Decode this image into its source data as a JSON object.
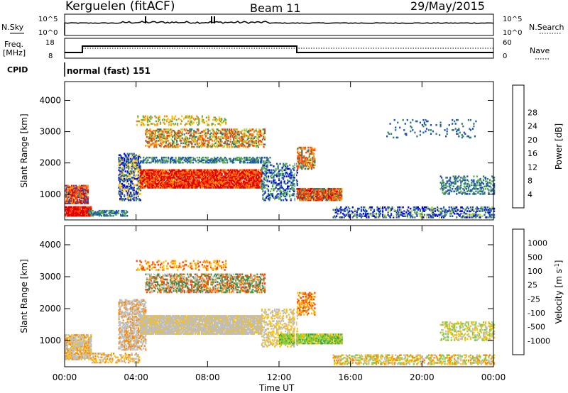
{
  "header": {
    "station": "Kerguelen (fitACF)",
    "beam": "Beam 11",
    "date": "29/May/2015"
  },
  "panels": {
    "nsky": {
      "left_label": "N.Sky",
      "left_ticks": [
        "10^5",
        "10^0"
      ],
      "right_label": "N.Search",
      "right_ticks": [
        "10^5",
        "10^0"
      ]
    },
    "freq": {
      "left_label_1": "Freq.",
      "left_label_2": "[MHz]",
      "left_ticks": [
        "18",
        "8"
      ],
      "right_label": "Nave",
      "right_ticks": [
        "60",
        "0"
      ]
    },
    "cpid": {
      "label": "CPID",
      "text": "normal (fast) 151"
    }
  },
  "chart_data": [
    {
      "type": "heatmap",
      "name": "power",
      "ylabel": "Slant Range [km]",
      "xlabel": "",
      "xticks": [
        "00:00",
        "04:00",
        "08:00",
        "12:00",
        "16:00",
        "20:00",
        "00:00"
      ],
      "yticks": [
        1000,
        2000,
        3000,
        4000
      ],
      "ylim": [
        180,
        4600
      ],
      "xlim_hours": [
        0,
        24
      ],
      "colorbar": {
        "label": "Power [dB]",
        "ticks": [
          "4",
          "8",
          "12",
          "16",
          "20",
          "24",
          "28"
        ],
        "colors": [
          "#0000ee",
          "#1f4fbf",
          "#2f7f6f",
          "#5fb04f",
          "#b5d23a",
          "#ffc000",
          "#ff8a00",
          "#ff4000",
          "#e00000"
        ]
      }
    },
    {
      "type": "heatmap",
      "name": "velocity",
      "ylabel": "Slant Range [km]",
      "xlabel": "Time UT",
      "xticks": [
        "00:00",
        "04:00",
        "08:00",
        "12:00",
        "16:00",
        "20:00",
        "00:00"
      ],
      "yticks": [
        1000,
        2000,
        3000,
        4000
      ],
      "ylim": [
        180,
        4600
      ],
      "xlim_hours": [
        0,
        24
      ],
      "colorbar": {
        "label": "Velocity [m s-1]",
        "ticks": [
          "1000",
          "500",
          "100",
          "25",
          "-25",
          "-100",
          "-500",
          "-1000"
        ],
        "colors": [
          "#2030c0",
          "#3f7f5f",
          "#3fa040",
          "#7fd040",
          "#bebebe",
          "#ffc000",
          "#ff8a00",
          "#ff4000",
          "#e00000"
        ]
      }
    }
  ]
}
